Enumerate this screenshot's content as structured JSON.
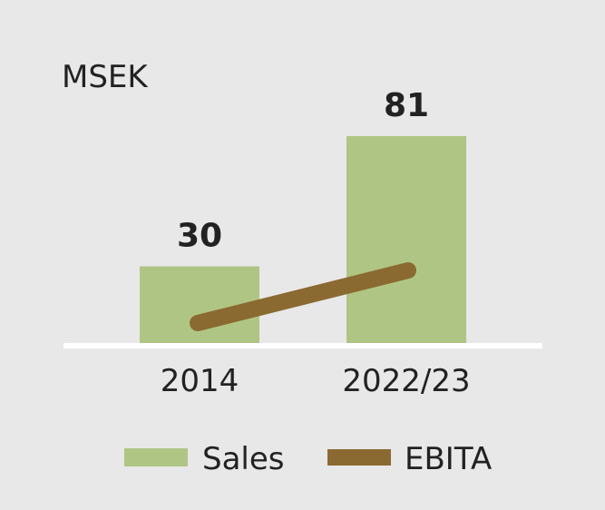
{
  "chart_data": {
    "type": "bar",
    "unit": "MSEK",
    "categories": [
      "2014",
      "2022/23"
    ],
    "series": [
      {
        "name": "Sales",
        "type": "bar",
        "values": [
          30,
          81
        ],
        "color": "#afc584"
      },
      {
        "name": "EBITA",
        "type": "line",
        "color": "#8b6a32"
      }
    ],
    "data_labels": [
      "30",
      "81"
    ],
    "ylim": [
      0,
      81
    ],
    "grid": false,
    "legend_position": "bottom"
  }
}
